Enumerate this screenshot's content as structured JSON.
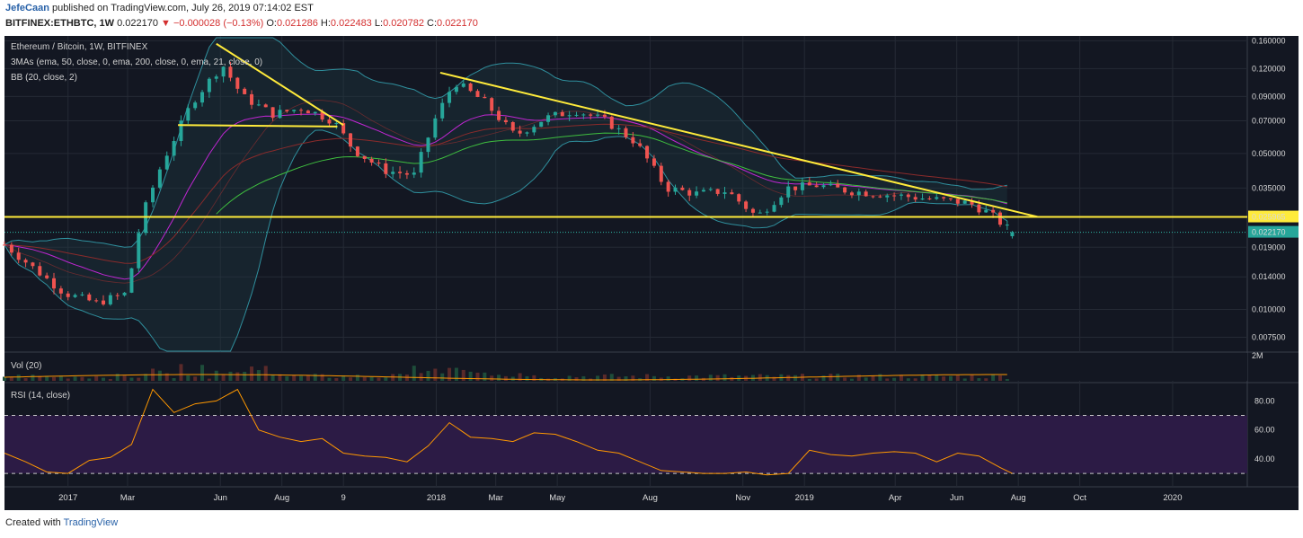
{
  "header": {
    "author": "JefeCaan",
    "published": "published on TradingView.com, July 26, 2019 07:14:02 EST",
    "symbol": "BITFINEX:ETHBTC, 1W",
    "last": "0.022170",
    "change": "−0.000028 (−0.13%)",
    "o_label": "O:",
    "o": "0.021286",
    "h_label": "H:",
    "h": "0.022483",
    "l_label": "L:",
    "l": "0.020782",
    "c_label": "C:",
    "c": "0.022170"
  },
  "legend": {
    "title": "Ethereum / Bitcoin, 1W, BITFINEX",
    "mas": "3MAs (ema, 50, close, 0, ema, 200, close, 0, ema, 21, close, 0)",
    "bb": "BB (20, close, 2)",
    "vol": "Vol (20)",
    "rsi": "RSI (14, close)"
  },
  "footer": {
    "created": "Created with",
    "brand": "TradingView"
  },
  "colors": {
    "background": "#131722",
    "up": "#26a69a",
    "down": "#ef5350",
    "support": "#ffeb3b",
    "rsi": "#ff9800",
    "rsi_band": "#2c1b45"
  },
  "chart_data": [
    {
      "type": "candlestick",
      "title": "Ethereum / Bitcoin, 1W, BITFINEX",
      "scale": "log",
      "ylim": [
        0.0065,
        0.165
      ],
      "y_ticks": [
        "0.160000",
        "0.120000",
        "0.090000",
        "0.070000",
        "0.050000",
        "0.035000",
        "0.025965",
        "0.022170",
        "0.019000",
        "0.014000",
        "0.010000",
        "0.007500"
      ],
      "y_tick_values": [
        0.16,
        0.12,
        0.09,
        0.07,
        0.05,
        0.035,
        0.025965,
        0.02217,
        0.019,
        0.014,
        0.01,
        0.0075
      ],
      "x_ticks": [
        "2017",
        "Mar",
        "Jun",
        "Aug",
        "9",
        "2018",
        "Mar",
        "May",
        "Aug",
        "Nov",
        "2019",
        "Apr",
        "Jun",
        "Aug",
        "Oct",
        "2020"
      ],
      "x_tick_dates": [
        "2017-01-01",
        "2017-03-01",
        "2017-06-01",
        "2017-08-01",
        "2017-10-01",
        "2018-01-01",
        "2018-03-01",
        "2018-05-01",
        "2018-08-01",
        "2018-11-01",
        "2019-01-01",
        "2019-04-01",
        "2019-06-01",
        "2019-08-01",
        "2019-10-01",
        "2020-01-01"
      ],
      "series": [
        {
          "dates": [
            "2016-10-30",
            "2016-12-29",
            "2017-01-29",
            "2017-02-28",
            "2017-03-15",
            "2017-04-04",
            "2017-05-04",
            "2017-06-03",
            "2017-06-23",
            "2017-07-23",
            "2017-08-22",
            "2017-09-21",
            "2017-10-11",
            "2017-11-10",
            "2017-12-10",
            "2017-12-30",
            "2018-01-19",
            "2018-02-18",
            "2018-03-20",
            "2018-04-19",
            "2018-05-19",
            "2018-06-18",
            "2018-07-18",
            "2018-08-17",
            "2018-09-16",
            "2018-10-16",
            "2018-11-15",
            "2018-12-15",
            "2019-01-14",
            "2019-02-13",
            "2019-03-15",
            "2019-04-14",
            "2019-05-14",
            "2019-06-13",
            "2019-07-03",
            "2019-07-26"
          ],
          "close": [
            0.0195,
            0.0118,
            0.0107,
            0.0118,
            0.026,
            0.045,
            0.085,
            0.125,
            0.09,
            0.075,
            0.08,
            0.07,
            0.052,
            0.042,
            0.04,
            0.07,
            0.105,
            0.085,
            0.06,
            0.072,
            0.078,
            0.07,
            0.056,
            0.035,
            0.033,
            0.034,
            0.026,
            0.035,
            0.036,
            0.034,
            0.033,
            0.032,
            0.031,
            0.03,
            0.027,
            0.02217
          ]
        }
      ],
      "price_line": 0.02217,
      "support_line": 0.025965,
      "trendline1": {
        "from": [
          "2017-05-28",
          0.155
        ],
        "to": [
          "2017-10-01",
          0.067
        ]
      },
      "hline1": {
        "from": [
          "2017-04-20",
          0.067
        ],
        "to": [
          "2017-09-25",
          0.066
        ]
      },
      "trendline2": {
        "from": [
          "2018-01-05",
          0.115
        ],
        "to": [
          "2019-08-20",
          0.026
        ]
      }
    },
    {
      "type": "bar",
      "title": "Vol (20)",
      "y_ticks": [
        "2M"
      ],
      "ylim": [
        0,
        2
      ]
    },
    {
      "type": "line",
      "title": "RSI (14, close)",
      "ylim": [
        22,
        92
      ],
      "y_ticks": [
        "80.00",
        "60.00",
        "40.00"
      ],
      "band": [
        30,
        70
      ],
      "series": [
        {
          "dates": [
            "2016-10-30",
            "2016-11-20",
            "2016-12-11",
            "2017-01-01",
            "2017-01-22",
            "2017-02-12",
            "2017-03-05",
            "2017-03-26",
            "2017-04-16",
            "2017-05-07",
            "2017-05-28",
            "2017-06-18",
            "2017-07-09",
            "2017-07-30",
            "2017-08-20",
            "2017-09-10",
            "2017-10-01",
            "2017-10-22",
            "2017-11-12",
            "2017-12-03",
            "2017-12-24",
            "2018-01-14",
            "2018-02-04",
            "2018-02-25",
            "2018-03-18",
            "2018-04-08",
            "2018-04-29",
            "2018-05-20",
            "2018-06-10",
            "2018-07-01",
            "2018-07-22",
            "2018-08-12",
            "2018-09-02",
            "2018-09-23",
            "2018-10-14",
            "2018-11-04",
            "2018-11-25",
            "2018-12-16",
            "2019-01-06",
            "2019-01-27",
            "2019-02-17",
            "2019-03-10",
            "2019-03-31",
            "2019-04-21",
            "2019-05-12",
            "2019-06-02",
            "2019-06-23",
            "2019-07-14",
            "2019-07-26"
          ],
          "values": [
            44,
            38,
            31,
            30,
            39,
            41,
            50,
            88,
            72,
            78,
            80,
            88,
            60,
            55,
            52,
            54,
            44,
            42,
            41,
            38,
            49,
            65,
            55,
            54,
            52,
            58,
            57,
            52,
            46,
            44,
            38,
            32,
            31,
            30,
            30,
            31,
            29,
            30,
            46,
            43,
            42,
            44,
            45,
            44,
            38,
            44,
            42,
            34,
            30
          ]
        }
      ]
    }
  ]
}
